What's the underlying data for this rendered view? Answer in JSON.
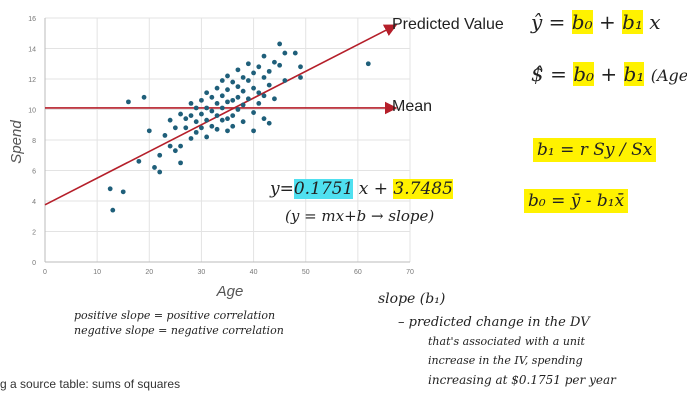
{
  "chart_data": {
    "type": "scatter",
    "xlabel": "Age",
    "ylabel": "Spend",
    "xlim": [
      0,
      70
    ],
    "ylim": [
      0,
      16
    ],
    "x_ticks": [
      "0",
      "10",
      "20",
      "30",
      "40",
      "50",
      "60",
      "70"
    ],
    "y_ticks": [
      "0",
      "2",
      "4",
      "6",
      "8",
      "10",
      "12",
      "14",
      "16"
    ],
    "grid": true,
    "points": [
      [
        12.5,
        4.8
      ],
      [
        13,
        3.4
      ],
      [
        15,
        4.6
      ],
      [
        18,
        6.6
      ],
      [
        20,
        8.6
      ],
      [
        21,
        6.2
      ],
      [
        22,
        7.0
      ],
      [
        22,
        5.9
      ],
      [
        23,
        8.3
      ],
      [
        24,
        9.3
      ],
      [
        24,
        7.6
      ],
      [
        25,
        8.8
      ],
      [
        25,
        7.3
      ],
      [
        26,
        9.7
      ],
      [
        26,
        7.6
      ],
      [
        26,
        6.5
      ],
      [
        27,
        9.4
      ],
      [
        27,
        8.8
      ],
      [
        28,
        10.4
      ],
      [
        28,
        9.6
      ],
      [
        28,
        8.1
      ],
      [
        29,
        10.1
      ],
      [
        29,
        9.2
      ],
      [
        29,
        8.5
      ],
      [
        30,
        10.6
      ],
      [
        30,
        9.7
      ],
      [
        30,
        8.8
      ],
      [
        31,
        11.1
      ],
      [
        31,
        10.1
      ],
      [
        31,
        9.3
      ],
      [
        31,
        8.2
      ],
      [
        32,
        10.8
      ],
      [
        32,
        9.9
      ],
      [
        32,
        8.9
      ],
      [
        33,
        11.4
      ],
      [
        33,
        10.4
      ],
      [
        33,
        9.6
      ],
      [
        33,
        8.7
      ],
      [
        34,
        11.9
      ],
      [
        34,
        10.9
      ],
      [
        34,
        10.1
      ],
      [
        34,
        9.3
      ],
      [
        35,
        12.2
      ],
      [
        35,
        11.3
      ],
      [
        35,
        10.5
      ],
      [
        35,
        9.4
      ],
      [
        35,
        8.6
      ],
      [
        36,
        11.8
      ],
      [
        36,
        10.6
      ],
      [
        36,
        9.6
      ],
      [
        36,
        8.9
      ],
      [
        37,
        12.6
      ],
      [
        37,
        11.5
      ],
      [
        37,
        10.8
      ],
      [
        37,
        10.0
      ],
      [
        38,
        12.1
      ],
      [
        38,
        11.2
      ],
      [
        38,
        10.3
      ],
      [
        38,
        9.2
      ],
      [
        39,
        13.0
      ],
      [
        39,
        11.9
      ],
      [
        39,
        10.7
      ],
      [
        40,
        12.4
      ],
      [
        40,
        11.4
      ],
      [
        40,
        9.8
      ],
      [
        40,
        8.6
      ],
      [
        41,
        12.8
      ],
      [
        41,
        11.1
      ],
      [
        41,
        10.4
      ],
      [
        42,
        13.5
      ],
      [
        42,
        12.1
      ],
      [
        42,
        10.9
      ],
      [
        42,
        9.4
      ],
      [
        43,
        12.5
      ],
      [
        43,
        11.6
      ],
      [
        44,
        13.1
      ],
      [
        44,
        10.7
      ],
      [
        45,
        14.3
      ],
      [
        45,
        12.9
      ],
      [
        46,
        13.7
      ],
      [
        46,
        11.9
      ],
      [
        48,
        13.7
      ],
      [
        49,
        12.8
      ],
      [
        49,
        12.1
      ],
      [
        62,
        13.0
      ],
      [
        16,
        10.5
      ],
      [
        19,
        10.8
      ],
      [
        43,
        9.1
      ]
    ],
    "regression_line": {
      "x": [
        0,
        67
      ],
      "y": [
        3.7485,
        15.48
      ]
    },
    "regression_label": "Predicted Value",
    "mean_line": {
      "y": 10.1,
      "x": [
        0,
        67
      ]
    },
    "mean_label": "Mean",
    "colors": {
      "points": "#1f5f7a",
      "lines": "#b51f2a",
      "grid": "#e3e3e3"
    }
  },
  "notes": {
    "formula1_lhs": "ŷ =",
    "formula1_b0": "b₀",
    "formula1_mid": "+",
    "formula1_b1": "b₁",
    "formula1_rhs": "x",
    "formula2_lhs": "$̂ =",
    "formula2_b0": "b₀",
    "formula2_mid": "+",
    "formula2_b1": "b₁",
    "formula2_rhs": "(Age)",
    "formula_b1_def": "b₁ = r Sy / Sx",
    "formula_b0_def": "b₀ = ȳ - b₁x̄",
    "eq_prefix": "y=",
    "eq_slope": "0.1751",
    "eq_mid": "x +",
    "eq_intercept": "3.7485",
    "eq_form": "(y = mx+b → slope)",
    "pos_label": "positive  slope  =  positive correlation",
    "neg_label": "negative  slope  =  negative correlation",
    "slope_title": "slope (b₁)",
    "slope_desc1": "– predicted  change  in  the  DV",
    "slope_desc2": "that's associated  with  a  unit",
    "slope_desc3": "increase  in  the  IV,  spending",
    "slope_desc4": "increasing  at  $0.1751  per year"
  },
  "caption": "g a source table: sums of squares"
}
